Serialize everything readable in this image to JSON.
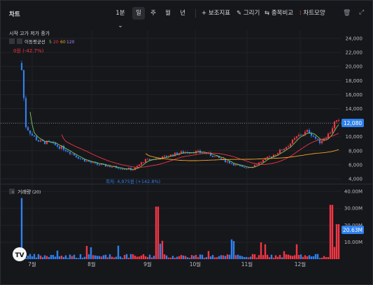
{
  "title": "차트",
  "toolbar": {
    "interval": "1분",
    "periods": [
      "일",
      "주",
      "월",
      "년"
    ],
    "active_period": "일",
    "tools": [
      {
        "icon": "plus-icon",
        "glyph": "+",
        "label": "보조지표"
      },
      {
        "icon": "pencil-icon",
        "glyph": "✎",
        "label": "그리기"
      },
      {
        "icon": "compare-icon",
        "glyph": "⇆",
        "label": "종목비교"
      },
      {
        "icon": "chart-style-icon",
        "glyph": "⁞",
        "label": "차트모양"
      }
    ]
  },
  "legend": {
    "ohlc_label": "시작 고가 저가 종가",
    "ma_label": "이동평균선",
    "ma_periods": [
      "5",
      "20",
      "60",
      "120"
    ],
    "change_text": "0원 (-42.7%)"
  },
  "annotations": {
    "low_label": "최저: 4,975원 (+142.8%)",
    "current_price": "12,080",
    "current_volume": "20.63M"
  },
  "volume_header": {
    "label": "거래량",
    "period": "(20)"
  },
  "colors": {
    "up": "#f23645",
    "down": "#2f80ed",
    "ma5": "#7cc95e",
    "ma20": "#f23645",
    "ma60": "#f5a623",
    "ma120": "#a78bfa",
    "background": "#16171b"
  },
  "chart_data": [
    {
      "type": "candlestick",
      "y_ticks": [
        "4,000",
        "6,000",
        "8,000",
        "10,000",
        "12,000",
        "14,000",
        "16,000",
        "18,000",
        "20,000",
        "22,000",
        "24,000"
      ],
      "ylim": [
        3300,
        25200
      ],
      "x_ticks": [
        "7월",
        "8월",
        "9월",
        "10월",
        "11월",
        "12월"
      ],
      "low": 4975,
      "last": 12080
    },
    {
      "type": "bar",
      "title": "거래량",
      "y_ticks": [
        "10.00M",
        "20.00M",
        "30.00M",
        "40.00M"
      ],
      "ylim": [
        0,
        42000000
      ],
      "last": 20630000
    }
  ]
}
